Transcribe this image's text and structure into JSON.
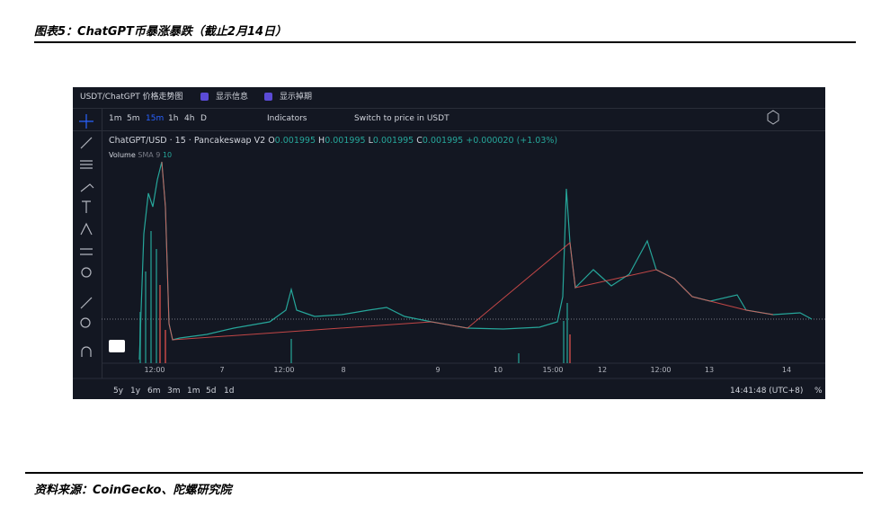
{
  "header": {
    "title": "图表5：ChatGPT币暴涨暴跌（截止2月14日）"
  },
  "widget": {
    "title": "USDT/ChatGPT 价格走势图",
    "options": [
      "显示信息",
      "显示掉期"
    ],
    "intervals": [
      "1m",
      "5m",
      "15m",
      "1h",
      "4h",
      "D"
    ],
    "indicators_button": "Indicators",
    "switch_button": "Switch to price in USDT",
    "legend": {
      "symbol": "ChatGPT/USD",
      "interval": "15",
      "exchange": "Pancakeswap V2",
      "open_label": "O",
      "open": "0.001995",
      "high_label": "H",
      "high": "0.001995",
      "low_label": "L",
      "low": "0.001995",
      "close_label": "C",
      "close": "0.001995",
      "change": "+0.000020 (+1.03%)"
    },
    "volume": {
      "label": "Volume",
      "sma": "SMA 9",
      "sma_value": "10"
    },
    "x_axis_labels": [
      "12:00",
      "7",
      "12:00",
      "8",
      "9",
      "10",
      "15:00",
      "12",
      "12:00",
      "13",
      "14"
    ],
    "ranges": [
      "5y",
      "1y",
      "6m",
      "3m",
      "1m",
      "5d",
      "1d"
    ],
    "time": "14:41:48 (UTC+8)",
    "percent_toggle": "%"
  },
  "footer": {
    "source": "资料来源：CoinGecko、陀螺研究院"
  }
}
